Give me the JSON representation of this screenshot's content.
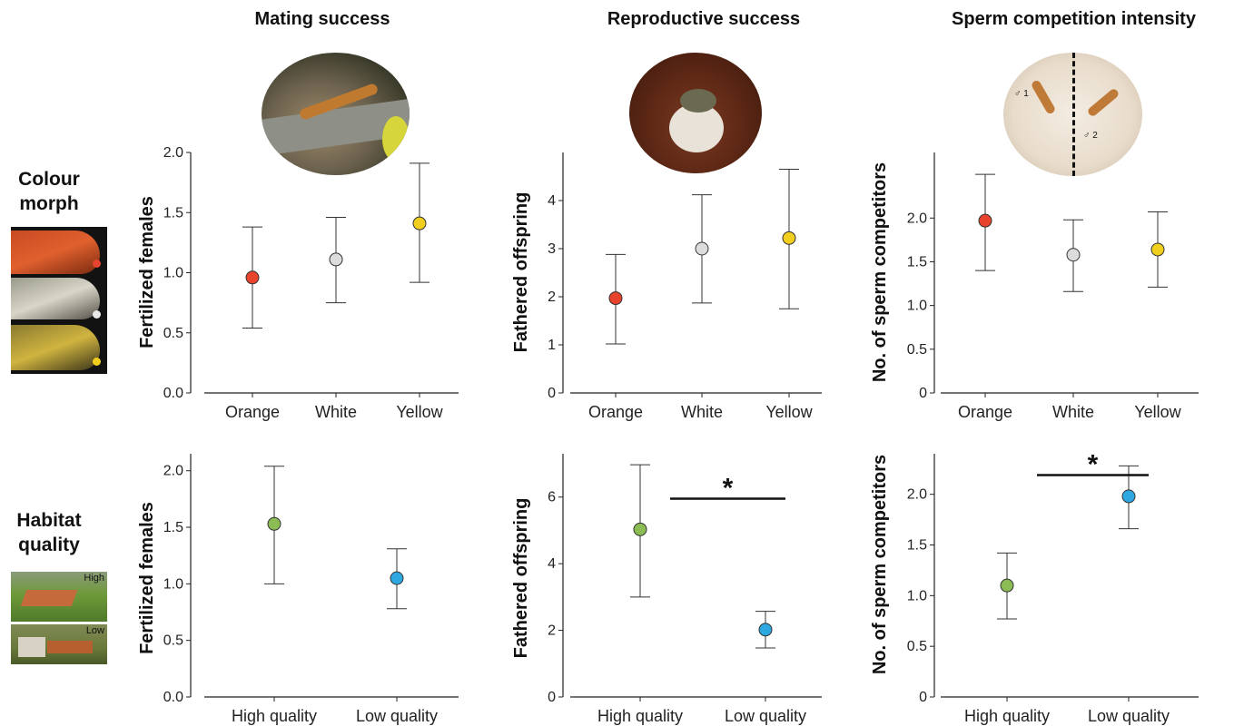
{
  "column_titles": [
    "Mating success",
    "Reproductive success",
    "Sperm competition intensity"
  ],
  "row_labels": {
    "colour_morph": [
      "Colour",
      "morph"
    ],
    "habitat_quality": [
      "Habitat",
      "quality"
    ]
  },
  "photo_labels": {
    "competition_left": "♂ 1",
    "competition_right": "♂ 2",
    "habitat_high": "High",
    "habitat_low": "Low"
  },
  "colors": {
    "orange": "#e8432c",
    "white": "#dcdcdc",
    "yellow": "#f2cf1f",
    "green": "#8cbd55",
    "blue": "#2ea8e0"
  },
  "chart_data": [
    {
      "id": "p1",
      "type": "scatter",
      "title": "",
      "xlabel": "",
      "ylabel": "Fertilized females",
      "categories": [
        "Orange",
        "White",
        "Yellow"
      ],
      "values": [
        0.96,
        1.11,
        1.41
      ],
      "lower": [
        0.54,
        0.75,
        0.92
      ],
      "upper": [
        1.38,
        1.46,
        1.91
      ],
      "point_colors": [
        "#e8432c",
        "#dcdcdc",
        "#f2cf1f"
      ],
      "ylim": [
        0,
        2.0
      ],
      "yticks": [
        "0.0",
        "0.5",
        "1.0",
        "1.5",
        "2.0"
      ],
      "grid": false
    },
    {
      "id": "p2",
      "type": "scatter",
      "title": "",
      "xlabel": "",
      "ylabel": "Fathered offspring",
      "categories": [
        "Orange",
        "White",
        "Yellow"
      ],
      "values": [
        1.97,
        3.0,
        3.22
      ],
      "lower": [
        1.02,
        1.87,
        1.75
      ],
      "upper": [
        2.88,
        4.12,
        4.65
      ],
      "point_colors": [
        "#e8432c",
        "#dcdcdc",
        "#f2cf1f"
      ],
      "ylim": [
        0,
        5.0
      ],
      "yticks": [
        "0",
        "1",
        "2",
        "3",
        "4"
      ],
      "grid": false
    },
    {
      "id": "p3",
      "type": "scatter",
      "title": "",
      "xlabel": "",
      "ylabel": "No. of sperm competitors",
      "categories": [
        "Orange",
        "White",
        "Yellow"
      ],
      "values": [
        1.97,
        1.58,
        1.64
      ],
      "lower": [
        1.4,
        1.16,
        1.21
      ],
      "upper": [
        2.5,
        1.98,
        2.07
      ],
      "point_colors": [
        "#e8432c",
        "#dcdcdc",
        "#f2cf1f"
      ],
      "ylim": [
        0,
        2.75
      ],
      "yticks": [
        "0",
        "0.5",
        "1.0",
        "1.5",
        "2.0"
      ],
      "grid": false
    },
    {
      "id": "p4",
      "type": "scatter",
      "title": "",
      "xlabel": "",
      "ylabel": "Fertilized females",
      "categories": [
        "High quality",
        "Low quality"
      ],
      "values": [
        1.53,
        1.05
      ],
      "lower": [
        1.0,
        0.78
      ],
      "upper": [
        2.04,
        1.31
      ],
      "point_colors": [
        "#8cbd55",
        "#2ea8e0"
      ],
      "ylim": [
        0,
        2.15
      ],
      "yticks": [
        "0.0",
        "0.5",
        "1.0",
        "1.5",
        "2.0"
      ],
      "grid": false
    },
    {
      "id": "p5",
      "type": "scatter",
      "title": "",
      "xlabel": "",
      "ylabel": "Fathered offspring",
      "categories": [
        "High quality",
        "Low quality"
      ],
      "values": [
        5.03,
        2.02
      ],
      "lower": [
        3.0,
        1.47
      ],
      "upper": [
        6.97,
        2.57
      ],
      "point_colors": [
        "#8cbd55",
        "#2ea8e0"
      ],
      "ylim": [
        0,
        7.3
      ],
      "yticks": [
        "0",
        "2",
        "4",
        "6"
      ],
      "grid": false,
      "significance": {
        "label": "*",
        "y": 5.95
      }
    },
    {
      "id": "p6",
      "type": "scatter",
      "title": "",
      "xlabel": "",
      "ylabel": "No. of sperm competitors",
      "categories": [
        "High quality",
        "Low quality"
      ],
      "values": [
        1.1,
        1.98
      ],
      "lower": [
        0.77,
        1.66
      ],
      "upper": [
        1.42,
        2.28
      ],
      "point_colors": [
        "#8cbd55",
        "#2ea8e0"
      ],
      "ylim": [
        0,
        2.4
      ],
      "yticks": [
        "0",
        "0.5",
        "1.0",
        "1.5",
        "2.0"
      ],
      "grid": false,
      "significance": {
        "label": "*",
        "y": 2.19
      }
    }
  ]
}
